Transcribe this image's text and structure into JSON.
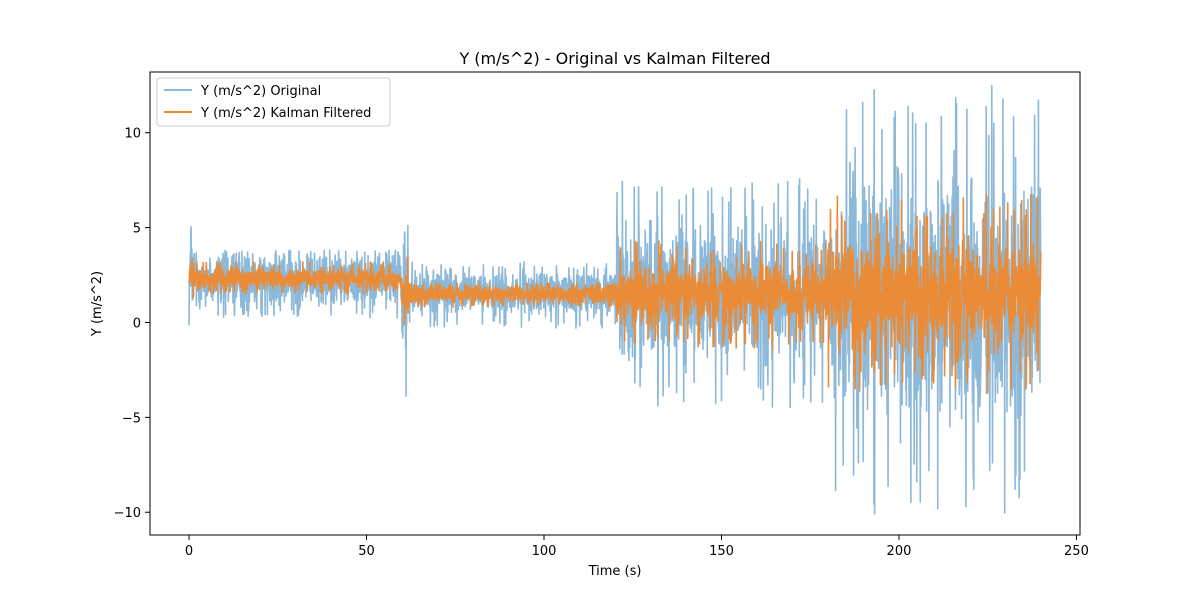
{
  "chart_data": {
    "type": "line",
    "title": "Y (m/s^2) - Original vs Kalman Filtered",
    "xlabel": "Time (s)",
    "ylabel": "Y (m/s^2)",
    "xlim": [
      -11,
      251
    ],
    "ylim": [
      -11.2,
      13.2
    ],
    "xticks": [
      0,
      50,
      100,
      150,
      200,
      250
    ],
    "xtick_labels": [
      "0",
      "50",
      "100",
      "150",
      "200",
      "250"
    ],
    "yticks": [
      -10,
      -5,
      0,
      5,
      10
    ],
    "ytick_labels": [
      "−10",
      "−5",
      "0",
      "5",
      "10"
    ],
    "grid": false,
    "legend_position": "upper-left",
    "series": [
      {
        "name": "Y (m/s^2) Original",
        "color": "#8cb9da",
        "segments": [
          {
            "t": [
              0,
              1.5
            ],
            "center": 2.2,
            "amplitude": 2.4,
            "spike_max": 5.2,
            "spike_min": -1.7
          },
          {
            "t": [
              1.5,
              60
            ],
            "center": 2.3,
            "amplitude": 1.3,
            "spike_max": 3.8,
            "spike_min": 0.2
          },
          {
            "t": [
              60,
              62
            ],
            "center": 1.5,
            "amplitude": 3.5,
            "spike_max": 5.4,
            "spike_min": -5.5
          },
          {
            "t": [
              62,
              120
            ],
            "center": 1.6,
            "amplitude": 1.0,
            "spike_max": 3.2,
            "spike_min": -0.3
          },
          {
            "t": [
              120,
              180
            ],
            "center": 1.5,
            "amplitude": 3.2,
            "spike_max": 7.6,
            "spike_min": -4.6
          },
          {
            "t": [
              180,
              240
            ],
            "center": 1.5,
            "amplitude": 5.5,
            "spike_max": 12.6,
            "spike_min": -10.2
          }
        ]
      },
      {
        "name": "Y (m/s^2) Kalman Filtered",
        "color": "#ea8b38",
        "segments": [
          {
            "t": [
              0,
              1.5
            ],
            "center": 2.3,
            "amplitude": 1.0,
            "spike_max": 4.1,
            "spike_min": 0.7
          },
          {
            "t": [
              1.5,
              60
            ],
            "center": 2.3,
            "amplitude": 0.5,
            "spike_max": 3.2,
            "spike_min": 1.5
          },
          {
            "t": [
              60,
              62
            ],
            "center": 1.5,
            "amplitude": 1.2,
            "spike_max": 3.6,
            "spike_min": -1.5
          },
          {
            "t": [
              62,
              120
            ],
            "center": 1.5,
            "amplitude": 0.45,
            "spike_max": 2.1,
            "spike_min": 0.8
          },
          {
            "t": [
              120,
              180
            ],
            "center": 1.5,
            "amplitude": 1.4,
            "spike_max": 4.3,
            "spike_min": -1.5
          },
          {
            "t": [
              180,
              240
            ],
            "center": 1.5,
            "amplitude": 2.6,
            "spike_max": 6.8,
            "spike_min": -3.8
          }
        ]
      }
    ]
  }
}
